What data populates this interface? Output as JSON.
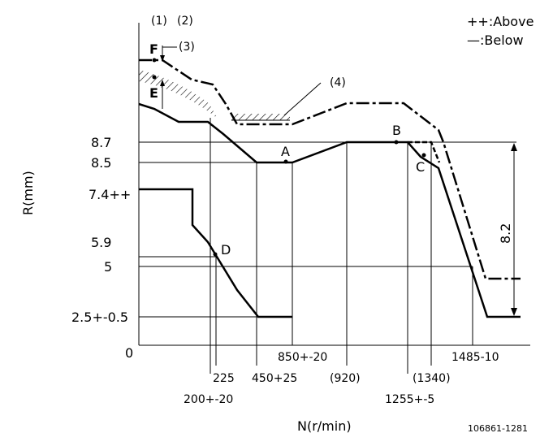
{
  "legend": {
    "above": "++:Above",
    "below": "—:Below"
  },
  "axes": {
    "y_label": "R(mm)",
    "x_label": "N(r/min)",
    "zero": "0"
  },
  "y_ticks": {
    "v87": "8.7",
    "v85": "8.5",
    "v74": "7.4++",
    "v59": "5.9",
    "v5": "5",
    "v25": "2.5+-0.5"
  },
  "x_ticks": {
    "t200": "200+-20",
    "t225": "225",
    "t450": "450+25",
    "t850": "850+-20",
    "t920": "(920)",
    "t1255": "1255+-5",
    "t1340": "(1340)",
    "t1485": "1485-10"
  },
  "callouts": {
    "c1": "(1)",
    "c2": "(2)",
    "c3": "(3)",
    "c4": "(4)"
  },
  "points": {
    "F": "F",
    "E": "E",
    "A": "A",
    "B": "B",
    "C": "C",
    "D": "D"
  },
  "dimension": "8.2",
  "doc_code": "106861-1281"
}
